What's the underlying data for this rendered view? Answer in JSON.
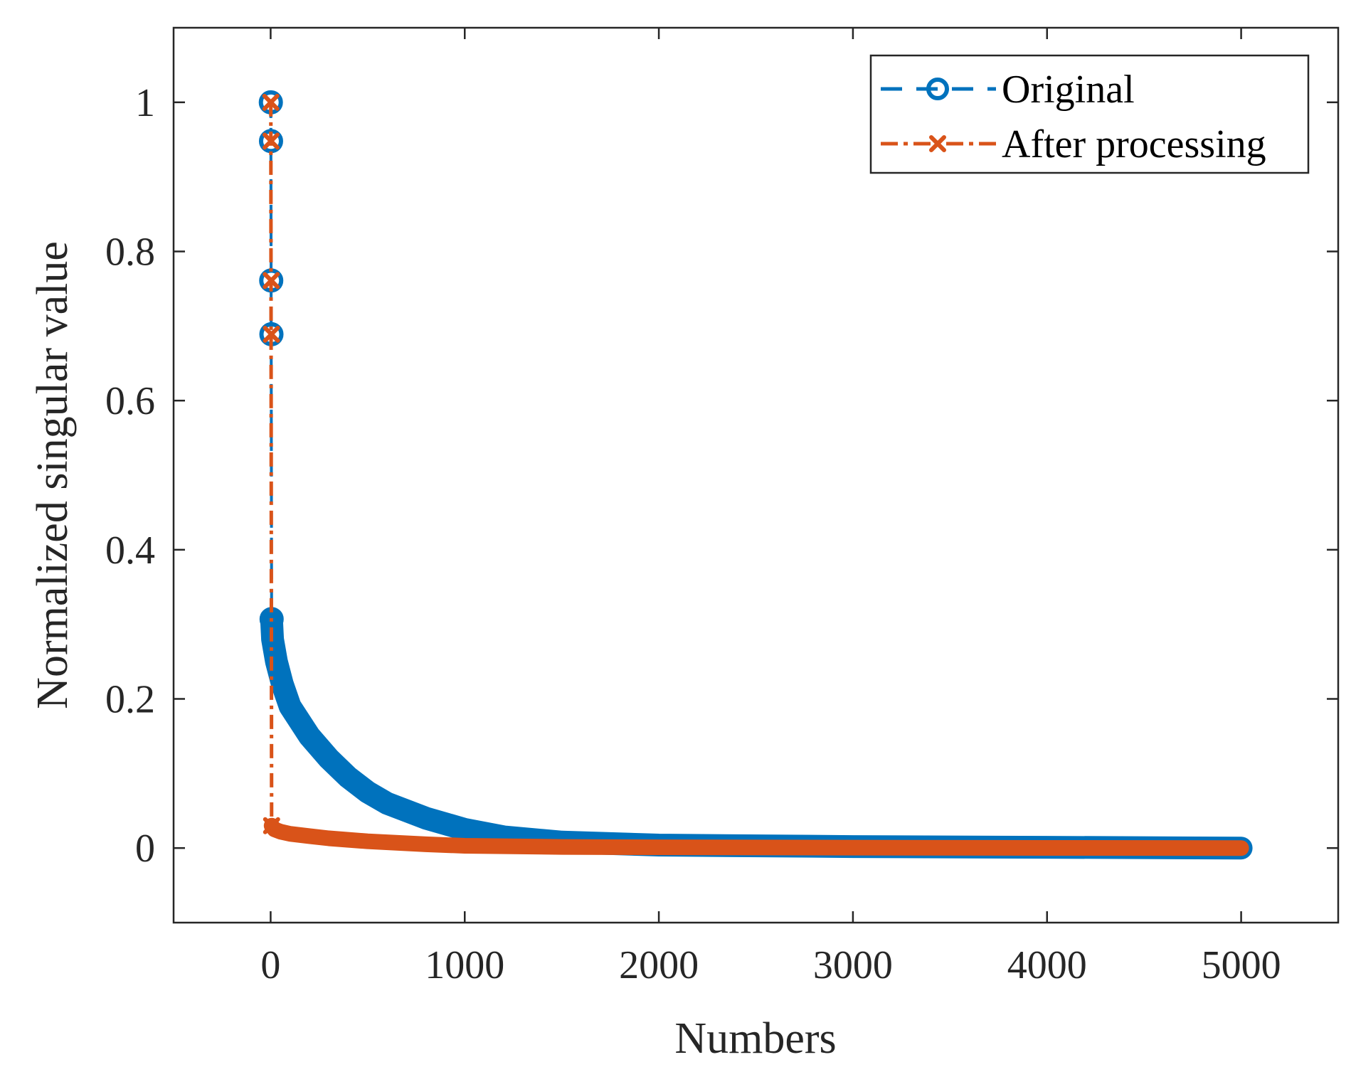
{
  "chart_data": {
    "type": "line",
    "title": "",
    "xlabel": "Numbers",
    "ylabel": "Normalized singular value",
    "xlim": [
      -500,
      5500
    ],
    "ylim": [
      -0.1,
      1.1
    ],
    "xticks": [
      0,
      1000,
      2000,
      3000,
      4000,
      5000
    ],
    "xtick_labels": [
      "0",
      "1000",
      "2000",
      "3000",
      "4000",
      "5000"
    ],
    "yticks": [
      0,
      0.2,
      0.4,
      0.6,
      0.8,
      1
    ],
    "ytick_labels": [
      "0",
      "0.2",
      "0.4",
      "0.6",
      "0.8",
      "1"
    ],
    "grid": false,
    "legend_position": "top-right",
    "series": [
      {
        "name": "Original",
        "color": "#0072BD",
        "line_style": "dashed",
        "marker": "circle",
        "leading_points": [
          {
            "x": 1,
            "y": 1.0
          },
          {
            "x": 2,
            "y": 0.948
          },
          {
            "x": 3,
            "y": 0.761
          },
          {
            "x": 4,
            "y": 0.689
          },
          {
            "x": 5,
            "y": 0.307
          }
        ],
        "tail": {
          "x": [
            5,
            10,
            30,
            60,
            100,
            200,
            300,
            400,
            500,
            600,
            800,
            1000,
            1200,
            1500,
            2000,
            3000,
            4000,
            5000
          ],
          "y": [
            0.305,
            0.28,
            0.25,
            0.22,
            0.19,
            0.15,
            0.12,
            0.095,
            0.075,
            0.06,
            0.04,
            0.025,
            0.015,
            0.008,
            0.004,
            0.002,
            0.001,
            0.0
          ]
        }
      },
      {
        "name": "After processing",
        "color": "#D95319",
        "line_style": "dash-dot",
        "marker": "x",
        "leading_points": [
          {
            "x": 1,
            "y": 1.0
          },
          {
            "x": 2,
            "y": 0.948
          },
          {
            "x": 3,
            "y": 0.761
          },
          {
            "x": 4,
            "y": 0.689
          },
          {
            "x": 5,
            "y": 0.03
          }
        ],
        "tail": {
          "x": [
            5,
            20,
            50,
            100,
            200,
            300,
            500,
            800,
            1000,
            1500,
            2000,
            3000,
            4000,
            5000
          ],
          "y": [
            0.03,
            0.025,
            0.022,
            0.019,
            0.016,
            0.013,
            0.009,
            0.005,
            0.003,
            0.0015,
            0.001,
            0.0005,
            0.0002,
            0.0
          ]
        }
      }
    ]
  }
}
